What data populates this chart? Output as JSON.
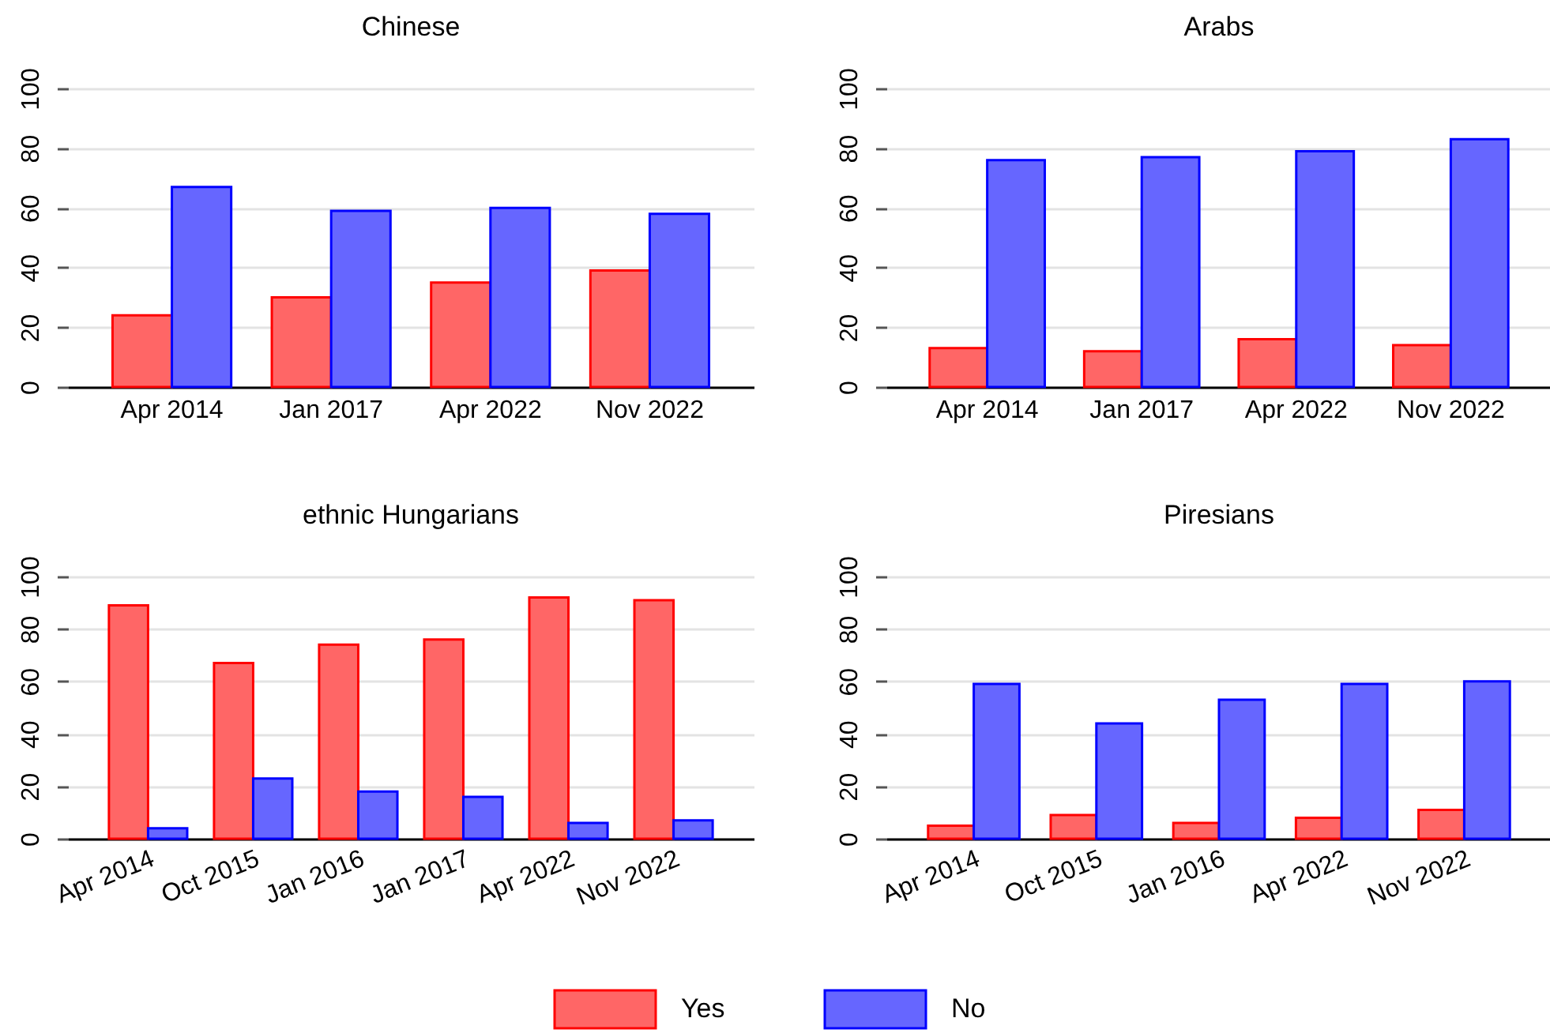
{
  "chart_data": [
    {
      "type": "bar",
      "title": "Chinese",
      "categories": [
        "Apr 2014",
        "Jan 2017",
        "Apr 2022",
        "Nov 2022"
      ],
      "series": [
        {
          "name": "Yes",
          "color": "#ff6666",
          "values": [
            24,
            30,
            35,
            39
          ]
        },
        {
          "name": "No",
          "color": "#6666ff",
          "values": [
            67,
            59,
            60,
            58
          ]
        }
      ],
      "ylim": [
        0,
        100
      ],
      "yticks": [
        0,
        20,
        40,
        60,
        80,
        100
      ],
      "grid": "y",
      "legend": "bottom"
    },
    {
      "type": "bar",
      "title": "Arabs",
      "categories": [
        "Apr 2014",
        "Jan 2017",
        "Apr 2022",
        "Nov 2022"
      ],
      "series": [
        {
          "color": "#ff6666",
          "values": [
            13,
            12,
            16,
            14
          ]
        },
        {
          "color": "#6666ff",
          "values": [
            76,
            77,
            79,
            83
          ]
        }
      ],
      "ylim": [
        0,
        100
      ],
      "yticks": [
        0,
        20,
        40,
        60,
        80,
        100
      ],
      "grid": "y"
    },
    {
      "type": "bar",
      "title": "ethnic Hungarians",
      "categories": [
        "Apr 2014",
        "Oct 2015",
        "Jan 2016",
        "Jan 2017",
        "Apr 2022",
        "Nov 2022"
      ],
      "series": [
        {
          "color": "#ff6666",
          "values": [
            89,
            67,
            74,
            76,
            92,
            91
          ]
        },
        {
          "color": "#6666ff",
          "values": [
            4,
            23,
            18,
            16,
            6,
            7
          ]
        }
      ],
      "ylim": [
        0,
        100
      ],
      "yticks": [
        0,
        20,
        40,
        60,
        80,
        100
      ],
      "grid": "y"
    },
    {
      "type": "bar",
      "title": "Piresians",
      "categories": [
        "Apr 2014",
        "Oct 2015",
        "Jan 2016",
        "Apr 2022",
        "Nov 2022"
      ],
      "series": [
        {
          "color": "#ff6666",
          "values": [
            5,
            9,
            6,
            8,
            11
          ]
        },
        {
          "color": "#6666ff",
          "values": [
            59,
            44,
            53,
            59,
            60
          ]
        }
      ],
      "ylim": [
        0,
        100
      ],
      "yticks": [
        0,
        20,
        40,
        60,
        80,
        100
      ],
      "grid": "y"
    }
  ]
}
